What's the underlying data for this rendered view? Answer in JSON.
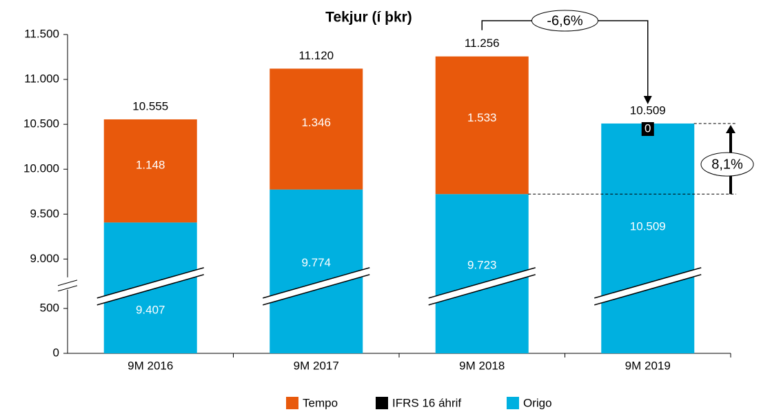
{
  "chart_data": {
    "type": "bar",
    "stacked": true,
    "title": "Tekjur (í þkr)",
    "categories": [
      "9M 2016",
      "9M 2017",
      "9M 2018",
      "9M 2019"
    ],
    "series": [
      {
        "name": "Tempo",
        "color": "#e8590c",
        "values": [
          1148,
          1346,
          1533,
          null
        ],
        "value_labels": [
          "1.148",
          "1.346",
          "1.533",
          null
        ]
      },
      {
        "name": "IFRS 16 áhrif",
        "color": "#000000",
        "values": [
          null,
          null,
          null,
          0
        ]
      },
      {
        "name": "Origo",
        "color": "#00b0e0",
        "values": [
          9407,
          9774,
          9723,
          10509
        ],
        "value_labels": [
          "9.407",
          "9.774",
          "9.723",
          "10.509"
        ]
      }
    ],
    "totals": {
      "values": [
        10555,
        11120,
        11256,
        10509
      ],
      "value_labels": [
        "10.555",
        "11.120",
        "11.256",
        "10.509"
      ]
    },
    "ylim": [
      0,
      11500
    ],
    "axis_break": [
      800,
      8750
    ],
    "yticks": [
      0,
      500,
      {
        "value": 9000,
        "label": "9.000"
      },
      {
        "value": 9500,
        "label": "9.500"
      },
      {
        "value": 10000,
        "label": "10.000"
      },
      {
        "value": 10500,
        "label": "10.500"
      },
      {
        "value": 11000,
        "label": "11.000"
      },
      {
        "value": 11500,
        "label": "11.500"
      }
    ],
    "annotations": [
      {
        "value": -6.6,
        "label": "-6,6%"
      },
      {
        "value": 8.1,
        "label": "8,1%"
      }
    ],
    "legend": "bottom"
  }
}
